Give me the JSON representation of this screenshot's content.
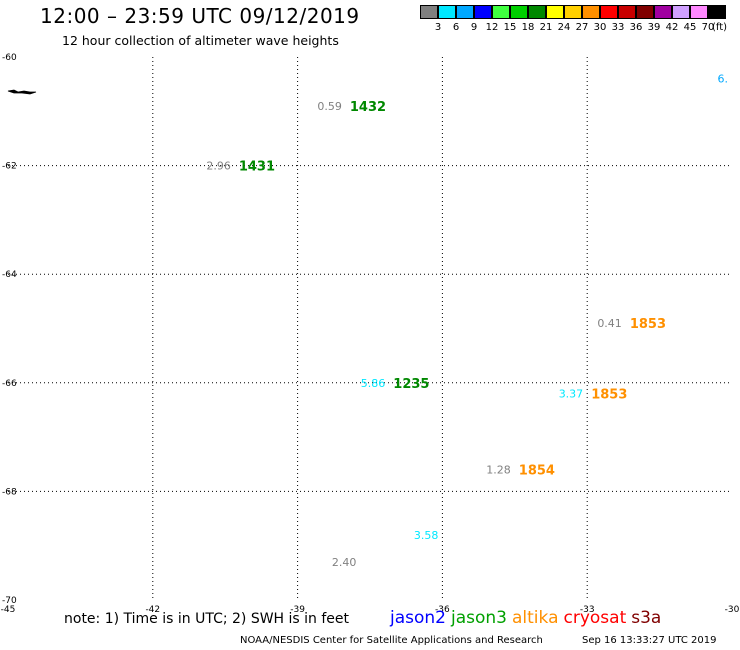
{
  "header": {
    "title": "12:00 – 23:59 UTC 09/12/2019",
    "subtitle": "12 hour collection of altimeter wave heights"
  },
  "color_scale": {
    "unit": "(ft)",
    "items": [
      {
        "label": "3",
        "color": "#808080"
      },
      {
        "label": "6",
        "color": "#00e8ff"
      },
      {
        "label": "9",
        "color": "#00a8ff"
      },
      {
        "label": "12",
        "color": "#0000ff"
      },
      {
        "label": "15",
        "color": "#40ff40"
      },
      {
        "label": "18",
        "color": "#00d000"
      },
      {
        "label": "21",
        "color": "#008800"
      },
      {
        "label": "24",
        "color": "#ffff00"
      },
      {
        "label": "27",
        "color": "#ffd000"
      },
      {
        "label": "30",
        "color": "#ff9000"
      },
      {
        "label": "33",
        "color": "#ff0000"
      },
      {
        "label": "36",
        "color": "#c80000"
      },
      {
        "label": "39",
        "color": "#800000"
      },
      {
        "label": "42",
        "color": "#a000a0"
      },
      {
        "label": "45",
        "color": "#d0a0ff"
      },
      {
        "label": "70",
        "color": "#ff88ff"
      },
      {
        "label": "",
        "color": "#000000"
      }
    ]
  },
  "map": {
    "lon_range": [
      -45,
      -30
    ],
    "lat_range": [
      -70,
      -60
    ],
    "lon_ticks": [
      "-45",
      "-42",
      "-39",
      "-36",
      "-33",
      "-30"
    ],
    "lon_values": [
      -45,
      -42,
      -39,
      -36,
      -33,
      -30
    ],
    "lat_ticks": [
      "-60",
      "-62",
      "-64",
      "-66",
      "-68",
      "-70"
    ],
    "lat_values": [
      -60,
      -62,
      -64,
      -66,
      -68,
      -70
    ],
    "observations": [
      {
        "lon": -38.0,
        "lat": -60.9,
        "swh": "0.59",
        "swh_color": "#808080",
        "time": "1432",
        "time_color": "#008800"
      },
      {
        "lon": -40.3,
        "lat": -62.0,
        "swh": "2.96",
        "swh_color": "#808080",
        "time": "1431",
        "time_color": "#008800"
      },
      {
        "lon": -32.2,
        "lat": -64.9,
        "swh": "0.41",
        "swh_color": "#808080",
        "time": "1853",
        "time_color": "#ff9000"
      },
      {
        "lon": -37.1,
        "lat": -66.0,
        "swh": "5.86",
        "swh_color": "#00e8ff",
        "time": "1235",
        "time_color": "#008800"
      },
      {
        "lon": -33.0,
        "lat": -66.2,
        "swh": "3.37",
        "swh_color": "#00e8ff",
        "time": "1853",
        "time_color": "#ff9000"
      },
      {
        "lon": -34.5,
        "lat": -67.6,
        "swh": "1.28",
        "swh_color": "#808080",
        "time": "1854",
        "time_color": "#ff9000"
      },
      {
        "lon": -36.0,
        "lat": -68.8,
        "swh": "3.58",
        "swh_color": "#00e8ff",
        "time": "",
        "time_color": "#008800"
      },
      {
        "lon": -37.7,
        "lat": -69.3,
        "swh": "2.40",
        "swh_color": "#808080",
        "time": "",
        "time_color": "#008800"
      },
      {
        "lon": -30.0,
        "lat": -60.4,
        "swh": "6.",
        "swh_color": "#00a8ff",
        "time": "",
        "time_color": "#008800"
      }
    ]
  },
  "note": "note:  1) Time is in UTC;  2) SWH is in feet",
  "legend": [
    {
      "label": "jason2",
      "color": "#0000ff"
    },
    {
      "label": "jason3",
      "color": "#00a000"
    },
    {
      "label": "altika",
      "color": "#ff9000"
    },
    {
      "label": "cryosat",
      "color": "#ff0000"
    },
    {
      "label": "s3a",
      "color": "#800000"
    }
  ],
  "footer": {
    "left": "NOAA/NESDIS Center for Satellite Applications and Research",
    "right": "Sep 16 13:33:27 UTC 2019"
  }
}
